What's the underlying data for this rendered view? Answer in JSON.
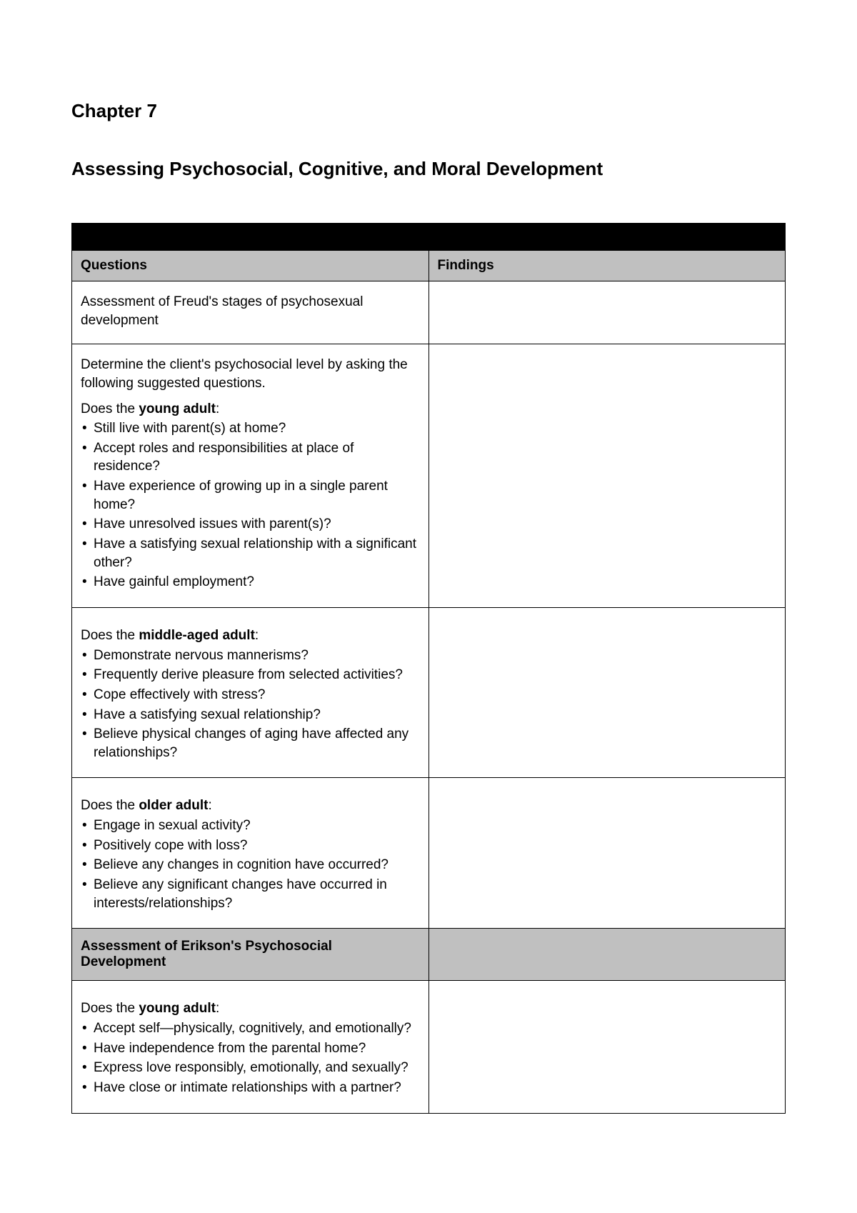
{
  "chapter": {
    "label": "Chapter 7",
    "title": "Assessing Psychosocial, Cognitive, and Moral Development"
  },
  "table": {
    "columns": {
      "questions": "Questions",
      "findings": "Findings"
    },
    "colors": {
      "blackband": "#000000",
      "header_bg": "#c0c0c0",
      "row_bg": "#ffffff",
      "border": "#000000",
      "text": "#000000"
    },
    "rows": [
      {
        "type": "plain",
        "text": "Assessment of Freud's stages of psychosexual development"
      },
      {
        "type": "lead_bullets",
        "intro": "Determine the client's psychosocial level by asking the following suggested questions.",
        "lead_pre": "Does the ",
        "lead_bold": "young adult",
        "lead_post": ":",
        "bullets": [
          "Still live with parent(s) at home?",
          "Accept roles and responsibilities at place of residence?",
          "Have experience of growing up in a single parent home?",
          "Have unresolved issues with parent(s)?",
          "Have a satisfying sexual relationship with a significant other?",
          "Have gainful employment?"
        ]
      },
      {
        "type": "lead_bullets",
        "lead_pre": "Does the ",
        "lead_bold": "middle-aged adult",
        "lead_post": ":",
        "bullets": [
          "Demonstrate nervous mannerisms?",
          "Frequently derive pleasure from selected activities?",
          "Cope effectively with stress?",
          "Have a satisfying sexual relationship?",
          "Believe physical changes of aging have affected any relationships?"
        ]
      },
      {
        "type": "lead_bullets",
        "lead_pre": "Does the ",
        "lead_bold": "older adult",
        "lead_post": ":",
        "bullets": [
          "Engage in sexual activity?",
          "Positively cope with loss?",
          "Believe any changes in cognition have occurred?",
          "Believe any significant changes have occurred in interests/relationships?"
        ]
      },
      {
        "type": "section",
        "text": "Assessment of Erikson's Psychosocial Development"
      },
      {
        "type": "lead_bullets",
        "lead_pre": "Does the ",
        "lead_bold": "young adult",
        "lead_post": ":",
        "bullets": [
          "Accept self—physically, cognitively, and emotionally?",
          "Have independence from the parental home?",
          "Express love responsibly, emotionally, and sexually?",
          "Have close or intimate relationships with a partner?"
        ]
      }
    ]
  }
}
